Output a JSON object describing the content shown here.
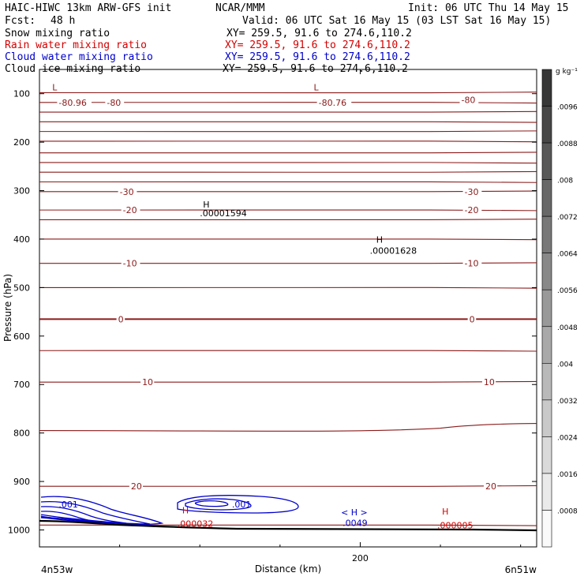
{
  "header": {
    "model": "HAIC-HIWC 13km ARW-GFS init",
    "org": "NCAR/MMM",
    "init": "Init: 06 UTC Thu 14 May 15",
    "fcst_label": "Fcst:",
    "fcst_value": "48 h",
    "valid": "Valid: 06 UTC Sat 16 May 15 (03 LST Sat 16 May 15)"
  },
  "legend": [
    {
      "name": "Snow mixing ratio",
      "xy": "XY= 259.5, 91.6 to 274.6,110.2",
      "color": "#000000"
    },
    {
      "name": "Rain water mixing ratio",
      "xy": "XY= 259.5, 91.6 to 274.6,110.2",
      "color": "#d40000"
    },
    {
      "name": "Cloud water mixing ratio",
      "xy": "XY= 259.5, 91.6 to 274.6,110.2",
      "color": "#0000cc"
    },
    {
      "name": "Cloud ice mixing ratio",
      "xy": "XY= 259.5, 91.6 to 274.6,110.2",
      "color": "#000000"
    }
  ],
  "colors": {
    "temperature": "#8b1a1a",
    "cloud_water": "#0000cc",
    "rain": "#d40000",
    "terrain": "#000000"
  },
  "chart_data": {
    "type": "line",
    "xlabel": "Distance (km)",
    "ylabel": "Pressure (hPa)",
    "x_ticks": [
      0,
      200
    ],
    "x_tick_labels": [
      "",
      "200"
    ],
    "xlim": [
      0,
      310
    ],
    "y_ticks": [
      100,
      200,
      300,
      400,
      500,
      600,
      700,
      800,
      900,
      1000
    ],
    "ylim": [
      1035,
      50
    ],
    "left_endpoint": "4n53w",
    "right_endpoint": "6n51w",
    "temperature_contours": {
      "levels": [
        -80,
        -30,
        -20,
        -10,
        0,
        10,
        20
      ],
      "isotherm_pressures": [
        98,
        118,
        138,
        158,
        178,
        198,
        222,
        242,
        262,
        282,
        302,
        340,
        360,
        400,
        450,
        500,
        565,
        630,
        695,
        795,
        910,
        990
      ]
    },
    "labels": [
      {
        "text": "-80.96",
        "x": 12,
        "p": 118,
        "kind": "temperature"
      },
      {
        "text": "-80",
        "x": 42,
        "p": 118,
        "kind": "temperature"
      },
      {
        "text": "-80.76",
        "x": 174,
        "p": 118,
        "kind": "temperature"
      },
      {
        "text": "-80",
        "x": 263,
        "p": 113,
        "kind": "temperature"
      },
      {
        "text": "-30",
        "x": 50,
        "p": 302,
        "kind": "temperature"
      },
      {
        "text": "-30",
        "x": 265,
        "p": 302,
        "kind": "temperature"
      },
      {
        "text": "-20",
        "x": 52,
        "p": 340,
        "kind": "temperature"
      },
      {
        "text": "-20",
        "x": 265,
        "p": 340,
        "kind": "temperature"
      },
      {
        "text": "-10",
        "x": 52,
        "p": 450,
        "kind": "temperature"
      },
      {
        "text": "-10",
        "x": 265,
        "p": 450,
        "kind": "temperature"
      },
      {
        "text": "0",
        "x": 49,
        "p": 565,
        "kind": "temperature"
      },
      {
        "text": "0",
        "x": 268,
        "p": 565,
        "kind": "temperature"
      },
      {
        "text": "10",
        "x": 64,
        "p": 695,
        "kind": "temperature"
      },
      {
        "text": "10",
        "x": 277,
        "p": 695,
        "kind": "temperature"
      },
      {
        "text": "20",
        "x": 57,
        "p": 910,
        "kind": "temperature"
      },
      {
        "text": "20",
        "x": 278,
        "p": 910,
        "kind": "temperature"
      },
      {
        "text": ".001",
        "x": 12,
        "p": 947,
        "kind": "cloud_water"
      },
      {
        "text": ".001",
        "x": 120,
        "p": 947,
        "kind": "cloud_water"
      },
      {
        "text": ".0049",
        "x": 189,
        "p": 985,
        "kind": "cloud_water"
      },
      {
        "text": ".000032",
        "x": 86,
        "p": 987,
        "kind": "rain"
      },
      {
        "text": ".000005",
        "x": 248,
        "p": 990,
        "kind": "rain"
      },
      {
        "text": ".00001594",
        "x": 100,
        "p": 346,
        "kind": "snow"
      },
      {
        "text": ".00001628",
        "x": 206,
        "p": 424,
        "kind": "snow"
      }
    ],
    "markers": [
      {
        "text": "L",
        "x": 8,
        "p": 87,
        "kind": "temperature"
      },
      {
        "text": "L",
        "x": 171,
        "p": 87,
        "kind": "temperature"
      },
      {
        "text": "H",
        "x": 102,
        "p": 328,
        "kind": "snow"
      },
      {
        "text": "H",
        "x": 210,
        "p": 401,
        "kind": "snow"
      },
      {
        "text": "H",
        "x": 89,
        "p": 959,
        "kind": "rain"
      },
      {
        "text": "H",
        "x": 251,
        "p": 962,
        "kind": "rain"
      },
      {
        "text": "< H >",
        "x": 188,
        "p": 963,
        "kind": "cloud_water"
      }
    ],
    "colorbar": {
      "units": "g kg⁻¹",
      "levels": [
        ".0096",
        ".0088",
        ".008",
        ".0072",
        ".0064",
        ".0056",
        ".0048",
        ".004",
        ".0032",
        ".0024",
        ".0016",
        ".0008"
      ]
    }
  }
}
